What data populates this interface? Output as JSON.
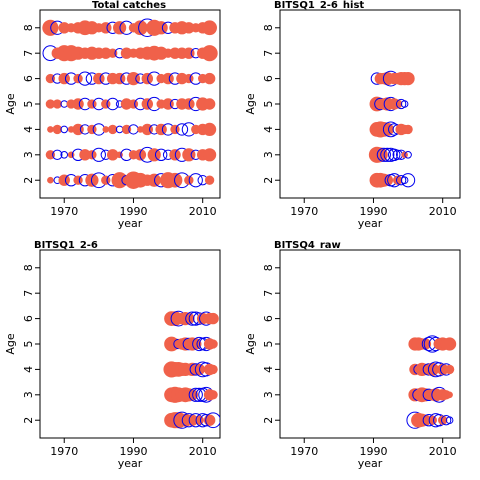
{
  "colors": {
    "positive_fill": "#f0614a",
    "negative_stroke": "#0000ee",
    "axis": "#000000"
  },
  "legend": "none",
  "chart_data": [
    {
      "type": "bubble",
      "title": "Total catches",
      "xlabel": "year",
      "ylabel": "Age",
      "xlim": [
        1963,
        2015
      ],
      "ylim": [
        1.3,
        8.7
      ],
      "x_ticks": [
        1970,
        1990,
        2010
      ],
      "y_ticks": [
        2,
        3,
        4,
        5,
        6,
        7,
        8
      ],
      "x": [
        1966,
        1968,
        1970,
        1972,
        1974,
        1976,
        1978,
        1980,
        1982,
        1984,
        1986,
        1988,
        1990,
        1992,
        1994,
        1996,
        1998,
        2000,
        2002,
        2004,
        2006,
        2008,
        2010,
        2012
      ],
      "ages": [
        2,
        3,
        4,
        5,
        6,
        7,
        8
      ],
      "residuals": [
        [
          1,
          -1,
          3,
          -3,
          2,
          -3,
          4,
          -5,
          2,
          -3,
          6,
          -2,
          7,
          5,
          3,
          4,
          -4,
          6,
          5,
          -5,
          2,
          -4,
          -2,
          2
        ],
        [
          2,
          -2,
          -1,
          1,
          -3,
          3,
          2,
          -4,
          -2,
          3,
          1,
          -3,
          2,
          3,
          -5,
          4,
          -3,
          -2,
          3,
          -4,
          4,
          -2,
          3,
          4
        ],
        [
          1,
          2,
          -1,
          1,
          3,
          -2,
          2,
          -3,
          1,
          2,
          -1,
          2,
          -2,
          1,
          3,
          -2,
          3,
          -3,
          2,
          -3,
          -4,
          2,
          3,
          4
        ],
        [
          2,
          2,
          -1,
          2,
          3,
          -3,
          2,
          -3,
          2,
          -3,
          -1,
          3,
          2,
          -3,
          3,
          -4,
          2,
          3,
          -2,
          3,
          3,
          -4,
          4,
          3
        ],
        [
          2,
          -2,
          3,
          -3,
          2,
          -4,
          -3,
          3,
          -3,
          3,
          3,
          -3,
          4,
          -2,
          3,
          -4,
          2,
          3,
          -3,
          3,
          2,
          -3,
          2,
          3
        ],
        [
          -5,
          3,
          6,
          6,
          4,
          3,
          4,
          3,
          3,
          2,
          -2,
          3,
          2,
          3,
          4,
          5,
          4,
          2,
          3,
          3,
          3,
          -2,
          3,
          6
        ],
        [
          6,
          -4,
          3,
          2,
          3,
          5,
          4,
          2,
          3,
          -3,
          4,
          -4,
          2,
          5,
          -7,
          6,
          4,
          -3,
          3,
          4,
          3,
          2,
          3,
          5
        ]
      ]
    },
    {
      "type": "bubble",
      "title": "BITSQ1_2-6_hist",
      "xlabel": "year",
      "ylabel": "Age",
      "xlim": [
        1963,
        2015
      ],
      "ylim": [
        1.3,
        8.7
      ],
      "x_ticks": [
        1970,
        1990,
        2010
      ],
      "y_ticks": [
        2,
        3,
        4,
        5,
        6,
        7,
        8
      ],
      "x": [
        1991,
        1992,
        1993,
        1994,
        1995,
        1996,
        1997,
        1998,
        1999,
        2000
      ],
      "ages": [
        2,
        3,
        4,
        5,
        6
      ],
      "residuals": [
        [
          5,
          5,
          4,
          3,
          -3,
          -4,
          2,
          -2,
          -1,
          -4
        ],
        [
          6,
          5,
          -4,
          -4,
          -4,
          -3,
          -2,
          -2,
          1,
          -1
        ],
        [
          5,
          6,
          5,
          4,
          -5,
          -3,
          -2,
          3,
          2,
          2
        ],
        [
          5,
          -3,
          3,
          4,
          -4,
          3,
          2,
          -2,
          -1,
          0
        ],
        [
          -3,
          3,
          3,
          4,
          -5,
          3,
          3,
          4,
          4,
          4
        ]
      ]
    },
    {
      "type": "bubble",
      "title": "BITSQ1_2-6",
      "xlabel": "year",
      "ylabel": "Age",
      "xlim": [
        1963,
        2015
      ],
      "ylim": [
        1.3,
        8.7
      ],
      "x_ticks": [
        1970,
        1990,
        2010
      ],
      "y_ticks": [
        2,
        3,
        4,
        5,
        6,
        7,
        8
      ],
      "x": [
        2001,
        2002,
        2003,
        2004,
        2005,
        2006,
        2007,
        2008,
        2009,
        2010,
        2011,
        2012,
        2013
      ],
      "ages": [
        2,
        3,
        4,
        5,
        6
      ],
      "residuals": [
        [
          5,
          6,
          6,
          -6,
          4,
          -4,
          3,
          -4,
          2,
          -4,
          -3,
          3,
          -5
        ],
        [
          5,
          6,
          5,
          4,
          5,
          4,
          3,
          -4,
          -4,
          -4,
          -5,
          3,
          2
        ],
        [
          6,
          5,
          5,
          4,
          4,
          3,
          4,
          -3,
          3,
          -5,
          -4,
          3,
          2
        ],
        [
          5,
          3,
          -2,
          3,
          4,
          -3,
          4,
          3,
          -4,
          -3,
          -4,
          3,
          2
        ],
        [
          5,
          5,
          -5,
          3,
          4,
          3,
          -4,
          -4,
          -3,
          3,
          -4,
          3,
          3
        ]
      ]
    },
    {
      "type": "bubble",
      "title": "BITSQ4_raw",
      "xlabel": "year",
      "ylabel": "Age",
      "xlim": [
        1963,
        2015
      ],
      "ylim": [
        1.3,
        8.7
      ],
      "x_ticks": [
        1970,
        1990,
        2010
      ],
      "y_ticks": [
        2,
        3,
        4,
        5,
        6,
        7,
        8
      ],
      "x": [
        2002,
        2003,
        2004,
        2005,
        2006,
        2007,
        2008,
        2009,
        2010,
        2011,
        2012
      ],
      "ages": [
        2,
        3,
        4,
        5
      ],
      "residuals": [
        [
          -6,
          5,
          4,
          3,
          -3,
          2,
          -4,
          -3,
          2,
          -2,
          -1
        ],
        [
          4,
          -3,
          5,
          4,
          -3,
          3,
          4,
          -5,
          3,
          2,
          1
        ],
        [
          3,
          -2,
          4,
          3,
          -3,
          4,
          -5,
          -4,
          3,
          -3,
          2
        ],
        [
          4,
          4,
          3,
          3,
          -4,
          -6,
          -4,
          3,
          4,
          3,
          4
        ]
      ]
    }
  ]
}
